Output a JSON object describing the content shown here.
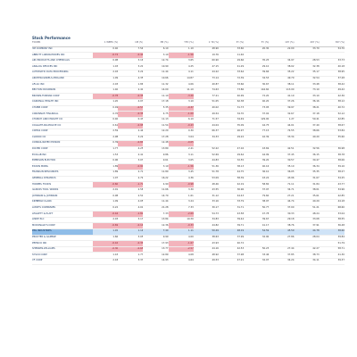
{
  "sheet": {
    "title": "Stock Performance",
    "columns": [
      "TICKER",
      "1 WEEK (%)",
      "1M (%)",
      "3M (%)",
      "YTD (%)",
      "1 YR (%)",
      "3Y (%)",
      "5Y (%)",
      "10Y (%)",
      "20Y (%)",
      "30Y (%)"
    ],
    "selected_row": "PPG INDUSTRIES",
    "highlight_color": "#f3b4bc",
    "selection_color": "#8fbde8",
    "rows": [
      {
        "ticker": "3M COMPANY INC",
        "values": [
          "0.40",
          "7.54",
          "6.10",
          "1.10",
          "48.90",
          "33.60",
          "20.30",
          "22.00",
          "33.70",
          "54.70"
        ],
        "neg": []
      },
      {
        "ticker": "ABBOTT LABORATORIES INC",
        "values": [
          "-0.74",
          "-0.44",
          "3.10",
          "-1.56",
          "19.76",
          "11.46",
          "",
          "",
          "",
          ""
        ],
        "neg": [
          0,
          1,
          3
        ]
      },
      {
        "ticker": "AIR PRODUCTS AND CHEMICALS",
        "values": [
          "0.98",
          "3.16",
          "12.74",
          "3.65",
          "60.90",
          "29.66",
          "35.25",
          "34.97",
          "28.53",
          "33.73"
        ],
        "neg": []
      },
      {
        "ticker": "ANALOG DEVICES INC",
        "values": [
          "1.03",
          "3.20",
          "10.90",
          "4.25",
          "47.15",
          "41.29",
          "29.10",
          "38.02",
          "32.38",
          "40.18"
        ],
        "neg": []
      },
      {
        "ticker": "AUTOMATIC DATA PROCESSING",
        "values": [
          "2.03",
          "3.29",
          "11.44",
          "4.11",
          "44.22",
          "33.64",
          "39.66",
          "35.22",
          "35.17",
          "38.95"
        ],
        "neg": []
      },
      {
        "ticker": "ARCHER-DANIELS-MIDLAND",
        "values": [
          "1.09",
          "4.35",
          "10.66",
          "14.87",
          "73.14",
          "72.39",
          "34.53",
          "49.79",
          "32.54",
          "37.28"
        ],
        "neg": []
      },
      {
        "ticker": "AFLAC INC",
        "values": [
          "2.03",
          "1.86",
          "11.32",
          "4.06",
          "40.87",
          "33.66",
          "30.67",
          "38.11",
          "33.48",
          "38.42"
        ],
        "neg": []
      },
      {
        "ticker": "BECTON DICKINSON",
        "values": [
          "1.40",
          "2.40",
          "14.00",
          "11.10",
          "74.63",
          "73.86",
          "144.60",
          "113.00",
          "73.10",
          "49.42"
        ],
        "neg": []
      },
      {
        "ticker": "BROWN-FORMAN CORP",
        "values": [
          "-0.78",
          "-0.38",
          "11.10",
          "-3.20",
          "77.21",
          "40.99",
          "72.20",
          "41.19",
          "33.10",
          "42.36"
        ],
        "neg": [
          0,
          1,
          3
        ]
      },
      {
        "ticker": "CARDINAL HEALTH INC",
        "values": [
          "1.20",
          "4.07",
          "17.18",
          "3.10",
          "51.05",
          "62.38",
          "40.20",
          "37.26",
          "36.16",
          "38.12"
        ],
        "neg": []
      },
      {
        "ticker": "CHUBB CORP",
        "values": [
          "0.49",
          "-0.57",
          "5.35",
          "-0.37",
          "40.02",
          "31.73",
          "73.05",
          "39.97",
          "38.21",
          "40.72"
        ],
        "neg": [
          1,
          3
        ]
      },
      {
        "ticker": "CINCINNATI FINANCIAL",
        "values": [
          "0.70",
          "-0.38",
          "4.75",
          "-1.00",
          "49.54",
          "34.70",
          "37.02",
          "32.67",
          "37.18",
          "52.12"
        ],
        "neg": [
          1,
          3
        ]
      },
      {
        "ticker": "CHURCH AND DWIGHT CO",
        "values": [
          "0.40",
          "0.43",
          "11.13",
          "6.10",
          "71.57",
          "34.49",
          "129.00",
          "1.27",
          "59.41",
          "42.85"
        ],
        "neg": []
      },
      {
        "ticker": "COLGATE-PALMOLIVE CO",
        "values": [
          "0.61",
          "-0.98",
          "11.54",
          "-0.43",
          "44.04",
          "35.09",
          "44.75",
          "44.01",
          "37.40",
          "38.67"
        ],
        "neg": [
          1,
          3
        ]
      },
      {
        "ticker": "CINTAS CORP",
        "values": [
          "2.59",
          "2.44",
          "12.20",
          "0.30",
          "66.37",
          "26.97",
          "77.15",
          "74.55",
          "38.66",
          "53.84"
        ],
        "neg": []
      },
      {
        "ticker": "CLOROX CO",
        "values": [
          "2.98",
          "3.29",
          "17.28",
          "3.04",
          "34.33",
          "29.22",
          "42.39",
          "33.34",
          "40.20",
          "35.60"
        ],
        "neg": []
      },
      {
        "ticker": "CONSOLIDATED EDISON",
        "values": [
          "0.39",
          "-0.86",
          "12.48",
          "-0.05",
          "",
          "",
          "",
          "",
          "",
          ""
        ],
        "neg": [
          1,
          3
        ]
      },
      {
        "ticker": "DOVER CORP",
        "values": [
          "1.77",
          "4.25",
          "13.80",
          "2.41",
          "52.22",
          "47.16",
          "43.69",
          "42.51",
          "32.56",
          "36.98"
        ],
        "neg": []
      },
      {
        "ticker": "ECOLAB INC",
        "values": [
          "1.53",
          "2.41",
          "9.86",
          "3.11",
          "52.69",
          "29.64",
          "44.99",
          "37.45",
          "36.15",
          "38.78"
        ],
        "neg": []
      },
      {
        "ticker": "EMERSON ELECTRIC",
        "values": [
          "0.96",
          "3.07",
          "9.61",
          "3.05",
          "44.83",
          "32.55",
          "39.20",
          "30.57",
          "30.47",
          "38.06"
        ],
        "neg": []
      },
      {
        "ticker": "EXXON MOBIL",
        "values": [
          "1.89",
          "-0.90",
          "3.19",
          "-1.56",
          "51.36",
          "38.13",
          "40.16",
          "35.10",
          "36.34",
          "39.16"
        ],
        "neg": [
          1,
          3
        ]
      },
      {
        "ticker": "FRANKLIN RESOURCES",
        "values": [
          "1.89",
          "2.71",
          "11.80",
          "3.45",
          "51.78",
          "44.75",
          "36.10",
          "36.05",
          "35.35",
          "38.27"
        ],
        "neg": []
      },
      {
        "ticker": "GENERAL DYNAMICS",
        "values": [
          "1.07",
          "2.79",
          "16.22",
          "4.36",
          "53.09",
          "58.39",
          "43.22",
          "43.96",
          "31.67",
          "34.25"
        ],
        "neg": []
      },
      {
        "ticker": "HORMEL FOODS",
        "values": [
          "-0.60",
          "-1.71",
          "4.90",
          "-0.98",
          "48.46",
          "42.19",
          "58.82",
          "71.11",
          "31.84",
          "43.77"
        ],
        "neg": [
          0,
          1,
          3
        ]
      },
      {
        "ticker": "ILLINOIS TOOL WORKS",
        "values": [
          "2.01",
          "2.58",
          "11.66",
          "3.30",
          "43.55",
          "30.96",
          "37.97",
          "34.71",
          "38.01",
          "34.96"
        ],
        "neg": []
      },
      {
        "ticker": "JOHNSON & JOHNSON",
        "values": [
          "0.98",
          "2.50",
          "14.70",
          "1.61",
          "31.12",
          "44.43",
          "79.60",
          "27.21",
          "35.61",
          "42.85"
        ],
        "neg": []
      },
      {
        "ticker": "KIMBERLY-CLARK",
        "values": [
          "1.09",
          "4.05",
          "11.44",
          "3.24",
          "33.16",
          "33.79",
          "38.97",
          "44.74",
          "40.29",
          "44.18"
        ],
        "neg": []
      },
      {
        "ticker": "LOWE'S COMPANIES",
        "values": [
          "0.22",
          "4.01",
          "21.28",
          "7.33",
          "30.17",
          "31.71",
          "50.77",
          "37.00",
          "51.21",
          "68.60"
        ],
        "neg": []
      },
      {
        "ticker": "LEGGETT & PLATT",
        "values": [
          "-0.44",
          "-1.82",
          "7.33",
          "-2.69",
          "54.73",
          "43.58",
          "47.78",
          "30.33",
          "48.24",
          "33.04"
        ],
        "neg": [
          0,
          1,
          3
        ]
      },
      {
        "ticker": "LINDE PLC",
        "values": [
          "2.03",
          "3.17",
          "13.84",
          "10.30",
          "34.83",
          "39.44",
          "39.67",
          "29.18",
          "33.08",
          "38.55"
        ],
        "neg": []
      },
      {
        "ticker": "MCDONALD'S CORP",
        "values": [
          "-0.69",
          "-0.14",
          "12.36",
          "-0.33",
          "44.82",
          "39.71",
          "41.17",
          "38.76",
          "37.91",
          "36.48"
        ],
        "neg": [
          0,
          1,
          3
        ]
      },
      {
        "ticker": "PPG INDUSTRIES",
        "values": [
          "1.45",
          "1.14",
          "7.40",
          "1.11",
          "50.49",
          "48.19",
          "54.59",
          "45.59",
          "44.78",
          "38.60"
        ],
        "neg": []
      },
      {
        "ticker": "PROCTER & GAMBLE",
        "values": [
          "1.66",
          "3.05",
          "9.99",
          "4.00",
          "38.63",
          "37.99",
          "32.90",
          "27.86",
          "28.04",
          "39.84"
        ],
        "neg": []
      },
      {
        "ticker": "PEPSICO INC",
        "values": [
          "-0.42",
          "-0.36",
          "17.93",
          "-1.67",
          "43.93",
          "40.72",
          "",
          "",
          "",
          "51.79"
        ],
        "neg": [
          0,
          1,
          3
        ]
      },
      {
        "ticker": "SHERWIN-WILLIAMS",
        "values": [
          "-0.30",
          "-0.68",
          "13.77",
          "-2.57",
          "44.16",
          "42.53",
          "50.23",
          "27.44",
          "42.27",
          "58.71"
        ],
        "neg": [
          0,
          1,
          3
        ]
      },
      {
        "ticker": "SYSCO CORP",
        "values": [
          "1.43",
          "1.77",
          "12.89",
          "4.08",
          "48.92",
          "37.98",
          "33.46",
          "37.85",
          "38.73",
          "41.30"
        ],
        "neg": []
      },
      {
        "ticker": "VF CORP",
        "values": [
          "2.18",
          "3.37",
          "14.93",
          "4.64",
          "49.53",
          "47.21",
          "32.07",
          "34.24",
          "34.11",
          "39.37"
        ],
        "neg": []
      }
    ]
  }
}
